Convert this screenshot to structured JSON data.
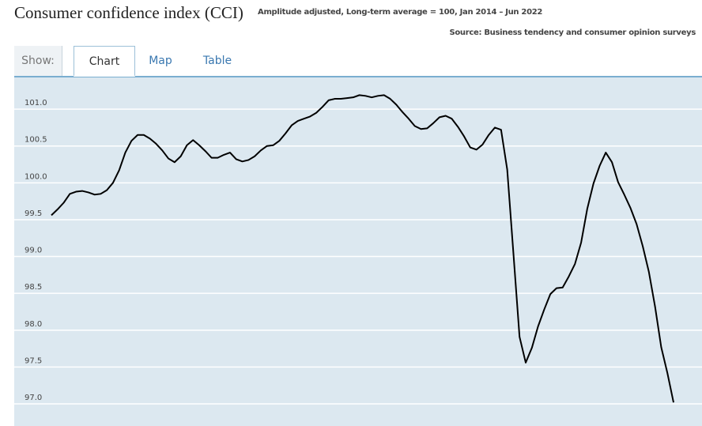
{
  "header": {
    "title": "Consumer confidence index (CCI)",
    "subtitle": "Amplitude adjusted, Long-term average = 100, Jan 2014 – Jun 2022",
    "source": "Source: Business tendency and consumer opinion surveys"
  },
  "tabs": {
    "label": "Show:",
    "items": [
      "Chart",
      "Map",
      "Table"
    ]
  },
  "chart_data": {
    "type": "line",
    "color": "#000000",
    "grid": true,
    "ylim": [
      96.7,
      101.43
    ],
    "yticks": [
      {
        "value": 97,
        "label": "97.0"
      },
      97.5,
      {
        "value": 98,
        "label": "98.0"
      },
      98.5,
      {
        "value": 99,
        "label": "99.0"
      },
      99.5,
      {
        "value": 100,
        "label": "100.0"
      },
      100.5,
      {
        "value": 101,
        "label": "101.0"
      }
    ],
    "values": [
      99.56,
      99.64,
      99.73,
      99.85,
      99.88,
      99.89,
      99.87,
      99.84,
      99.85,
      99.9,
      100.0,
      100.17,
      100.41,
      100.57,
      100.65,
      100.65,
      100.6,
      100.53,
      100.44,
      100.33,
      100.28,
      100.36,
      100.51,
      100.58,
      100.51,
      100.43,
      100.34,
      100.34,
      100.38,
      100.41,
      100.32,
      100.29,
      100.31,
      100.36,
      100.44,
      100.5,
      100.51,
      100.57,
      100.67,
      100.78,
      100.84,
      100.87,
      100.9,
      100.95,
      101.03,
      101.12,
      101.14,
      101.14,
      101.15,
      101.16,
      101.19,
      101.18,
      101.16,
      101.18,
      101.19,
      101.14,
      101.06,
      100.96,
      100.87,
      100.77,
      100.73,
      100.74,
      100.81,
      100.89,
      100.91,
      100.87,
      100.76,
      100.63,
      100.48,
      100.45,
      100.52,
      100.65,
      100.75,
      100.72,
      100.18,
      99.05,
      97.91,
      97.56,
      97.76,
      98.05,
      98.28,
      98.49,
      98.57,
      98.58,
      98.73,
      98.9,
      99.19,
      99.65,
      99.99,
      100.23,
      100.41,
      100.28,
      100.01,
      99.84,
      99.66,
      99.44,
      99.14,
      98.79,
      98.32,
      97.77,
      97.42,
      97.02
    ]
  }
}
